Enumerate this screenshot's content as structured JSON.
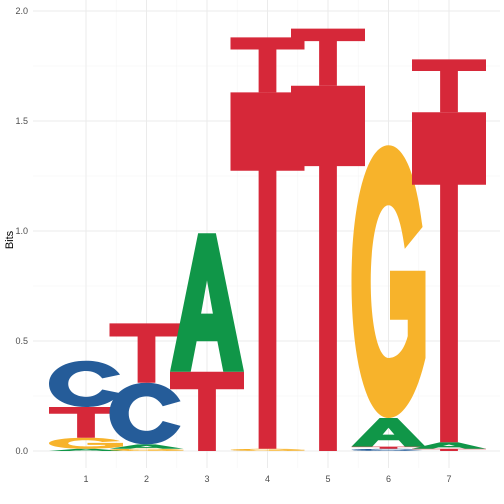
{
  "chart_data": {
    "type": "sequence-logo",
    "ylabel": "Bits",
    "ylim": [
      0,
      2
    ],
    "yticks": [
      0.0,
      0.5,
      1.0,
      1.5,
      2.0
    ],
    "ytick_labels": [
      "0.0",
      "0.5",
      "1.0",
      "1.5",
      "2.0"
    ],
    "positions": [
      "1",
      "2",
      "3",
      "4",
      "5",
      "6",
      "7"
    ],
    "grid": true,
    "colors": {
      "A": "#109648",
      "C": "#255c99",
      "G": "#f7b32b",
      "T": "#d62839"
    },
    "stacks": [
      [
        {
          "letter": "A",
          "height": 0.01
        },
        {
          "letter": "G",
          "height": 0.05
        },
        {
          "letter": "T",
          "height": 0.14
        },
        {
          "letter": "C",
          "height": 0.21
        }
      ],
      [
        {
          "letter": "G",
          "height": 0.01
        },
        {
          "letter": "A",
          "height": 0.02
        },
        {
          "letter": "C",
          "height": 0.28
        },
        {
          "letter": "T",
          "height": 0.27
        }
      ],
      [
        {
          "letter": "T",
          "height": 0.36
        },
        {
          "letter": "A",
          "height": 0.63
        }
      ],
      [
        {
          "letter": "G",
          "height": 0.01
        },
        {
          "letter": "T",
          "height": 1.62
        },
        {
          "letter": "T",
          "height": 0.25
        }
      ],
      [
        {
          "letter": "T",
          "height": 1.66
        },
        {
          "letter": "T",
          "height": 0.26
        }
      ],
      [
        {
          "letter": "C",
          "height": 0.01
        },
        {
          "letter": "T",
          "height": 0.01
        },
        {
          "letter": "A",
          "height": 0.13
        },
        {
          "letter": "G",
          "height": 1.24
        }
      ],
      [
        {
          "letter": "T",
          "height": 0.01
        },
        {
          "letter": "A",
          "height": 0.03
        },
        {
          "letter": "T",
          "height": 1.5
        },
        {
          "letter": "T",
          "height": 0.24
        }
      ]
    ]
  }
}
